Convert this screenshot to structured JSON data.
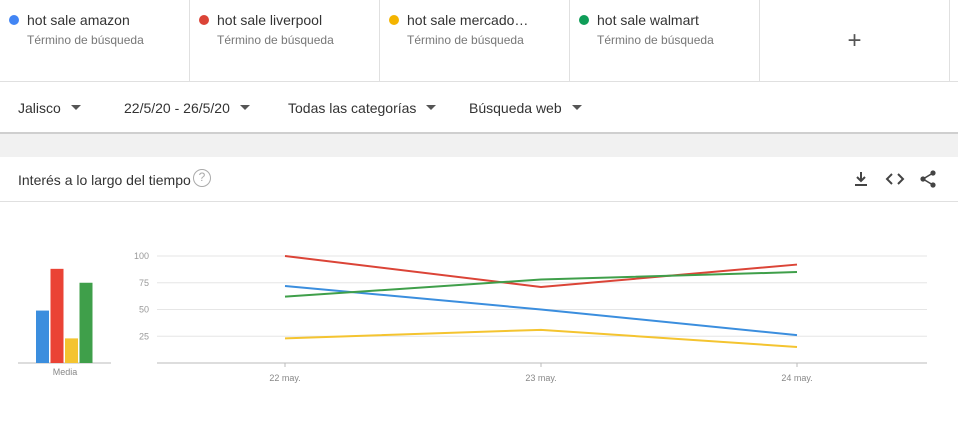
{
  "terms": [
    {
      "label": "hot sale amazon",
      "sub": "Término de búsqueda",
      "color": "#4285f4"
    },
    {
      "label": "hot sale liverpool",
      "sub": "Término de búsqueda",
      "color": "#db4437"
    },
    {
      "label": "hot sale mercado libre",
      "sub": "Término de búsqueda",
      "color": "#f4b400"
    },
    {
      "label": "hot sale walmart",
      "sub": "Término de búsqueda",
      "color": "#0f9d58"
    }
  ],
  "add_term_label": "+",
  "filters": {
    "region": "Jalisco",
    "date_range": "22/5/20 - 26/5/20",
    "category": "Todas las categorías",
    "search_type": "Búsqueda web"
  },
  "card": {
    "title": "Interés a lo largo del tiempo",
    "help_glyph": "?",
    "icons": [
      "download-icon",
      "embed-icon",
      "share-icon"
    ]
  },
  "chart_data": {
    "type": "line",
    "x": [
      "22 may.",
      "23 may.",
      "24 may."
    ],
    "ylim": [
      0,
      100
    ],
    "yticks": [
      25,
      50,
      75,
      100
    ],
    "grid": true,
    "series": [
      {
        "name": "hot sale amazon",
        "color": "#3b8ede",
        "values": [
          72,
          50,
          26
        ]
      },
      {
        "name": "hot sale liverpool",
        "color": "#db4437",
        "values": [
          100,
          71,
          92
        ]
      },
      {
        "name": "hot sale mercado libre",
        "color": "#f4c430",
        "values": [
          23,
          31,
          15
        ]
      },
      {
        "name": "hot sale walmart",
        "color": "#3f9f4a",
        "values": [
          62,
          78,
          85
        ]
      }
    ],
    "averages": {
      "label": "Media",
      "values": [
        49,
        88,
        23,
        75
      ],
      "colors": [
        "#3b8ede",
        "#ea4335",
        "#f4c430",
        "#3f9f4a"
      ]
    }
  }
}
